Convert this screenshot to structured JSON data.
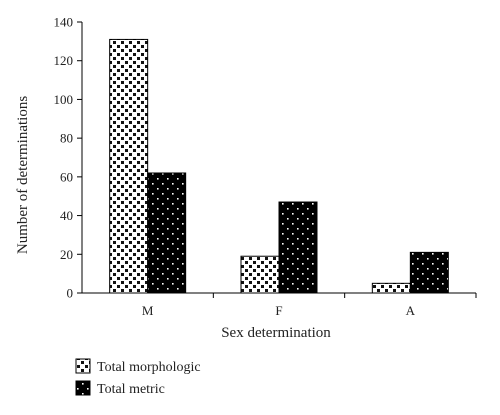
{
  "chart_data": {
    "type": "bar",
    "title": "",
    "xlabel": "Sex determination",
    "ylabel": "Number of determinations",
    "categories": [
      "M",
      "F",
      "A"
    ],
    "ylim": [
      0,
      140
    ],
    "yticks": [
      0,
      20,
      40,
      60,
      80,
      100,
      120,
      140
    ],
    "grid": false,
    "legend_position": "bottom-left",
    "series": [
      {
        "name": "Total morphologic",
        "values": [
          131,
          19,
          5
        ],
        "pattern": "white-with-black-dots"
      },
      {
        "name": "Total metric",
        "values": [
          62,
          47,
          21
        ],
        "pattern": "black-with-white-dots"
      }
    ]
  }
}
